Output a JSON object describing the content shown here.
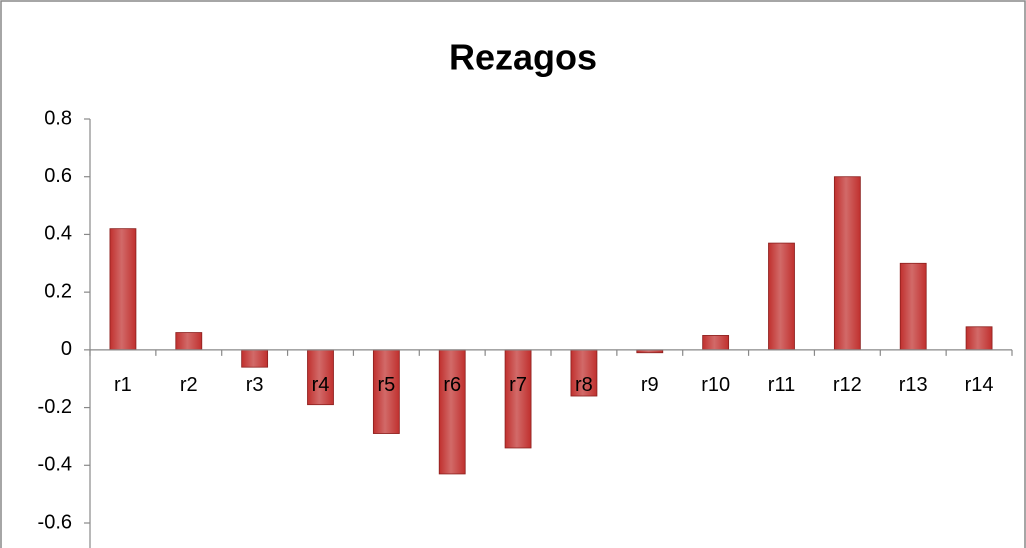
{
  "chart_data": {
    "type": "bar",
    "title": "Rezagos",
    "categories": [
      "r1",
      "r2",
      "r3",
      "r4",
      "r5",
      "r6",
      "r7",
      "r8",
      "r9",
      "r10",
      "r11",
      "r12",
      "r13",
      "r14"
    ],
    "values": [
      0.42,
      0.06,
      -0.06,
      -0.19,
      -0.29,
      -0.43,
      -0.34,
      -0.16,
      -0.01,
      0.05,
      0.37,
      0.6,
      0.3,
      0.08
    ],
    "color": "#c0302e",
    "ylim": [
      -0.6,
      0.8
    ],
    "yticks": [
      -0.6,
      -0.4,
      -0.2,
      0,
      0.2,
      0.4,
      0.6,
      0.8
    ],
    "grid": false
  }
}
